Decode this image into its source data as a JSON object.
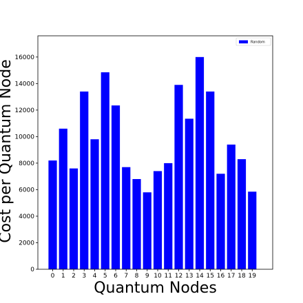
{
  "chart_data": {
    "type": "bar",
    "xlabel": "Quantum Nodes",
    "ylabel": "Cost per Quantum Node",
    "categories": [
      "0",
      "1",
      "2",
      "3",
      "4",
      "5",
      "6",
      "7",
      "8",
      "9",
      "10",
      "11",
      "12",
      "13",
      "14",
      "15",
      "16",
      "17",
      "18",
      "19"
    ],
    "series": [
      {
        "name": "Random",
        "color": "#0000ff",
        "values": [
          8200,
          10600,
          7600,
          13400,
          9800,
          14850,
          12350,
          7700,
          6800,
          5800,
          7400,
          8000,
          13900,
          11350,
          16000,
          13400,
          7200,
          9400,
          8300,
          5850
        ]
      }
    ],
    "ylim": [
      0,
      17600
    ],
    "yticks": [
      0,
      2000,
      4000,
      6000,
      8000,
      10000,
      12000,
      14000,
      16000
    ],
    "grid": false,
    "legend_position": "top-right"
  }
}
